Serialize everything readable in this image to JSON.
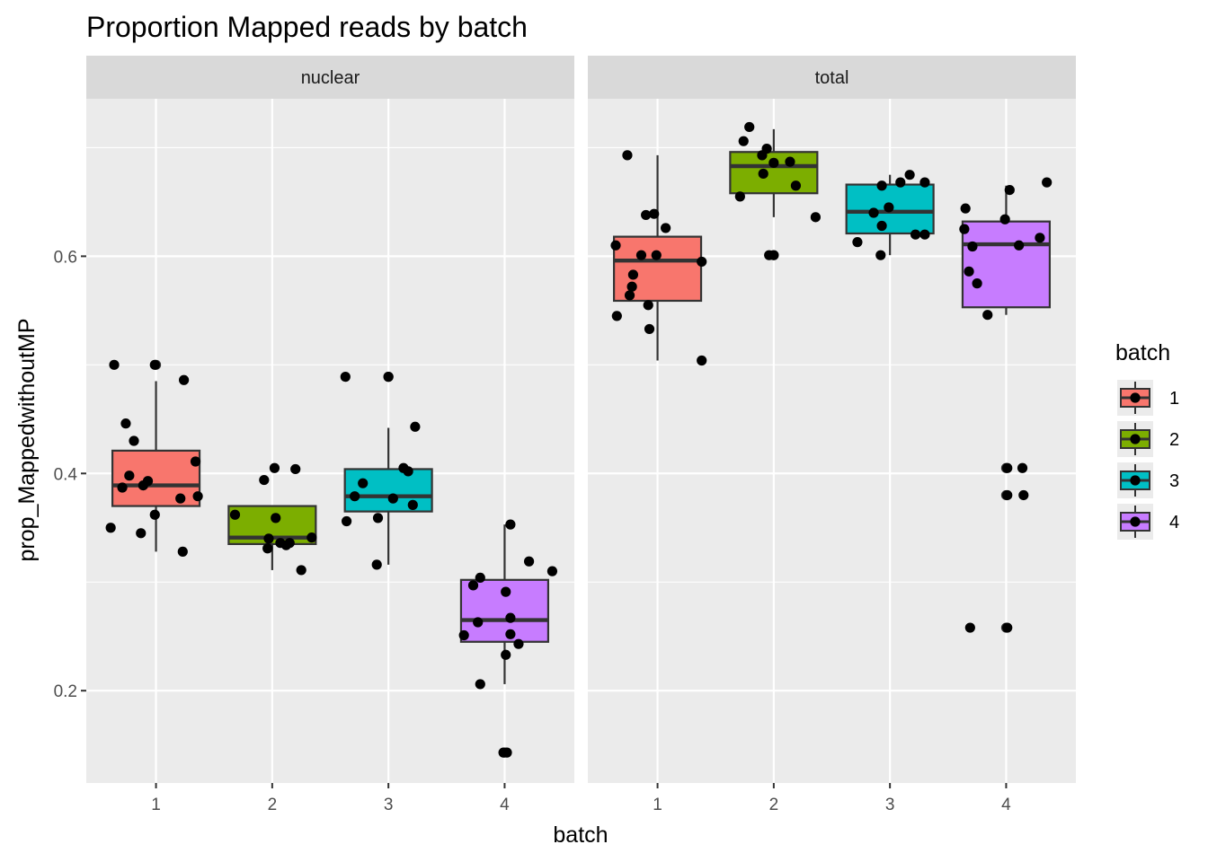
{
  "chart_data": {
    "type": "box",
    "title": "Proportion Mapped reads by batch",
    "xlabel": "batch",
    "ylabel": "prop_MappedwithoutMP",
    "categories": [
      "1",
      "2",
      "3",
      "4"
    ],
    "ylim": [
      0.115,
      0.745
    ],
    "y_ticks": [
      0.2,
      0.4,
      0.6
    ],
    "y_tick_labels": [
      "0.2",
      "0.4",
      "0.6"
    ],
    "grid": true,
    "legend": {
      "title": "batch",
      "position": "right",
      "entries": [
        "1",
        "2",
        "3",
        "4"
      ]
    },
    "colors": {
      "1": "#F8766D",
      "2": "#7CAE00",
      "3": "#00BFC4",
      "4": "#C77CFF",
      "panel_bg": "#EBEBEB",
      "strip_bg": "#D9D9D9",
      "grid": "#FFFFFF",
      "point": "#000000"
    },
    "panels": [
      {
        "name": "nuclear",
        "boxes": [
          {
            "batch": "1",
            "min": 0.328,
            "q1": 0.37,
            "median": 0.389,
            "q3": 0.421,
            "max": 0.485,
            "outliers": [
              0.5
            ]
          },
          {
            "batch": "2",
            "min": 0.311,
            "q1": 0.335,
            "median": 0.341,
            "q3": 0.37,
            "max": 0.37,
            "outliers": []
          },
          {
            "batch": "3",
            "min": 0.316,
            "q1": 0.365,
            "median": 0.379,
            "q3": 0.404,
            "max": 0.442,
            "outliers": [
              0.489
            ]
          },
          {
            "batch": "4",
            "min": 0.206,
            "q1": 0.245,
            "median": 0.265,
            "q3": 0.302,
            "max": 0.353,
            "outliers": [
              0.143
            ]
          }
        ],
        "points": [
          {
            "batch": "1",
            "x": 0.61,
            "y": 0.35
          },
          {
            "batch": "1",
            "x": 0.64,
            "y": 0.5
          },
          {
            "batch": "1",
            "x": 0.71,
            "y": 0.387
          },
          {
            "batch": "1",
            "x": 0.74,
            "y": 0.446
          },
          {
            "batch": "1",
            "x": 0.77,
            "y": 0.398
          },
          {
            "batch": "1",
            "x": 0.81,
            "y": 0.43
          },
          {
            "batch": "1",
            "x": 0.87,
            "y": 0.345
          },
          {
            "batch": "1",
            "x": 0.89,
            "y": 0.389
          },
          {
            "batch": "1",
            "x": 0.93,
            "y": 0.393
          },
          {
            "batch": "1",
            "x": 0.99,
            "y": 0.362
          },
          {
            "batch": "1",
            "x": 0.99,
            "y": 0.5
          },
          {
            "batch": "1",
            "x": 1.21,
            "y": 0.377
          },
          {
            "batch": "1",
            "x": 1.23,
            "y": 0.328
          },
          {
            "batch": "1",
            "x": 1.24,
            "y": 0.486
          },
          {
            "batch": "1",
            "x": 1.34,
            "y": 0.411
          },
          {
            "batch": "1",
            "x": 1.36,
            "y": 0.379
          },
          {
            "batch": "2",
            "x": 1.68,
            "y": 0.362
          },
          {
            "batch": "2",
            "x": 1.93,
            "y": 0.394
          },
          {
            "batch": "2",
            "x": 1.96,
            "y": 0.331
          },
          {
            "batch": "2",
            "x": 1.97,
            "y": 0.34
          },
          {
            "batch": "2",
            "x": 2.02,
            "y": 0.405
          },
          {
            "batch": "2",
            "x": 2.03,
            "y": 0.359
          },
          {
            "batch": "2",
            "x": 2.07,
            "y": 0.336
          },
          {
            "batch": "2",
            "x": 2.12,
            "y": 0.334
          },
          {
            "batch": "2",
            "x": 2.15,
            "y": 0.336
          },
          {
            "batch": "2",
            "x": 2.2,
            "y": 0.404
          },
          {
            "batch": "2",
            "x": 2.25,
            "y": 0.311
          },
          {
            "batch": "2",
            "x": 2.34,
            "y": 0.341
          },
          {
            "batch": "3",
            "x": 2.64,
            "y": 0.356
          },
          {
            "batch": "3",
            "x": 2.71,
            "y": 0.379
          },
          {
            "batch": "3",
            "x": 2.78,
            "y": 0.391
          },
          {
            "batch": "3",
            "x": 2.63,
            "y": 0.489
          },
          {
            "batch": "3",
            "x": 2.9,
            "y": 0.316
          },
          {
            "batch": "3",
            "x": 2.91,
            "y": 0.359
          },
          {
            "batch": "3",
            "x": 3.0,
            "y": 0.489
          },
          {
            "batch": "3",
            "x": 3.04,
            "y": 0.377
          },
          {
            "batch": "3",
            "x": 3.13,
            "y": 0.405
          },
          {
            "batch": "3",
            "x": 3.17,
            "y": 0.402
          },
          {
            "batch": "3",
            "x": 3.21,
            "y": 0.371
          },
          {
            "batch": "3",
            "x": 3.23,
            "y": 0.443
          },
          {
            "batch": "4",
            "x": 3.65,
            "y": 0.251
          },
          {
            "batch": "4",
            "x": 3.73,
            "y": 0.297
          },
          {
            "batch": "4",
            "x": 3.77,
            "y": 0.263
          },
          {
            "batch": "4",
            "x": 3.79,
            "y": 0.304
          },
          {
            "batch": "4",
            "x": 3.79,
            "y": 0.206
          },
          {
            "batch": "4",
            "x": 3.99,
            "y": 0.143
          },
          {
            "batch": "4",
            "x": 4.01,
            "y": 0.233
          },
          {
            "batch": "4",
            "x": 4.02,
            "y": 0.143
          },
          {
            "batch": "4",
            "x": 4.01,
            "y": 0.291
          },
          {
            "batch": "4",
            "x": 4.05,
            "y": 0.267
          },
          {
            "batch": "4",
            "x": 4.05,
            "y": 0.252
          },
          {
            "batch": "4",
            "x": 4.05,
            "y": 0.353
          },
          {
            "batch": "4",
            "x": 4.12,
            "y": 0.243
          },
          {
            "batch": "4",
            "x": 4.21,
            "y": 0.319
          },
          {
            "batch": "4",
            "x": 4.41,
            "y": 0.31
          }
        ]
      },
      {
        "name": "total",
        "boxes": [
          {
            "batch": "1",
            "min": 0.504,
            "q1": 0.559,
            "median": 0.596,
            "q3": 0.618,
            "max": 0.693,
            "outliers": []
          },
          {
            "batch": "2",
            "min": 0.636,
            "q1": 0.658,
            "median": 0.683,
            "q3": 0.696,
            "max": 0.717,
            "outliers": [
              0.601
            ]
          },
          {
            "batch": "3",
            "min": 0.601,
            "q1": 0.621,
            "median": 0.641,
            "q3": 0.666,
            "max": 0.675,
            "outliers": []
          },
          {
            "batch": "4",
            "min": 0.546,
            "q1": 0.553,
            "median": 0.611,
            "q3": 0.632,
            "max": 0.665,
            "outliers": [
              0.258,
              0.38,
              0.405
            ]
          }
        ],
        "points": [
          {
            "batch": "1",
            "x": 0.65,
            "y": 0.545
          },
          {
            "batch": "1",
            "x": 0.64,
            "y": 0.61
          },
          {
            "batch": "1",
            "x": 0.74,
            "y": 0.693
          },
          {
            "batch": "1",
            "x": 0.76,
            "y": 0.564
          },
          {
            "batch": "1",
            "x": 0.78,
            "y": 0.572
          },
          {
            "batch": "1",
            "x": 0.79,
            "y": 0.583
          },
          {
            "batch": "1",
            "x": 0.86,
            "y": 0.601
          },
          {
            "batch": "1",
            "x": 0.9,
            "y": 0.638
          },
          {
            "batch": "1",
            "x": 0.92,
            "y": 0.555
          },
          {
            "batch": "1",
            "x": 0.93,
            "y": 0.533
          },
          {
            "batch": "1",
            "x": 0.97,
            "y": 0.639
          },
          {
            "batch": "1",
            "x": 1.07,
            "y": 0.626
          },
          {
            "batch": "1",
            "x": 0.99,
            "y": 0.601
          },
          {
            "batch": "1",
            "x": 1.38,
            "y": 0.504
          },
          {
            "batch": "1",
            "x": 1.38,
            "y": 0.595
          },
          {
            "batch": "2",
            "x": 1.71,
            "y": 0.655
          },
          {
            "batch": "2",
            "x": 1.74,
            "y": 0.706
          },
          {
            "batch": "2",
            "x": 1.79,
            "y": 0.719
          },
          {
            "batch": "2",
            "x": 1.9,
            "y": 0.693
          },
          {
            "batch": "2",
            "x": 1.91,
            "y": 0.676
          },
          {
            "batch": "2",
            "x": 1.94,
            "y": 0.699
          },
          {
            "batch": "2",
            "x": 1.96,
            "y": 0.601
          },
          {
            "batch": "2",
            "x": 2.0,
            "y": 0.601
          },
          {
            "batch": "2",
            "x": 2.0,
            "y": 0.686
          },
          {
            "batch": "2",
            "x": 2.14,
            "y": 0.687
          },
          {
            "batch": "2",
            "x": 2.19,
            "y": 0.665
          },
          {
            "batch": "2",
            "x": 2.36,
            "y": 0.636
          },
          {
            "batch": "3",
            "x": 2.72,
            "y": 0.613
          },
          {
            "batch": "3",
            "x": 2.86,
            "y": 0.64
          },
          {
            "batch": "3",
            "x": 2.92,
            "y": 0.601
          },
          {
            "batch": "3",
            "x": 2.93,
            "y": 0.628
          },
          {
            "batch": "3",
            "x": 2.93,
            "y": 0.665
          },
          {
            "batch": "3",
            "x": 2.99,
            "y": 0.645
          },
          {
            "batch": "3",
            "x": 3.09,
            "y": 0.668
          },
          {
            "batch": "3",
            "x": 3.17,
            "y": 0.675
          },
          {
            "batch": "3",
            "x": 3.22,
            "y": 0.62
          },
          {
            "batch": "3",
            "x": 3.3,
            "y": 0.62
          },
          {
            "batch": "3",
            "x": 3.3,
            "y": 0.668
          },
          {
            "batch": "4",
            "x": 3.64,
            "y": 0.625
          },
          {
            "batch": "4",
            "x": 3.65,
            "y": 0.644
          },
          {
            "batch": "4",
            "x": 3.68,
            "y": 0.586
          },
          {
            "batch": "4",
            "x": 3.71,
            "y": 0.609
          },
          {
            "batch": "4",
            "x": 3.75,
            "y": 0.575
          },
          {
            "batch": "4",
            "x": 3.69,
            "y": 0.258
          },
          {
            "batch": "4",
            "x": 3.84,
            "y": 0.546
          },
          {
            "batch": "4",
            "x": 3.99,
            "y": 0.634
          },
          {
            "batch": "4",
            "x": 4.03,
            "y": 0.661
          },
          {
            "batch": "4",
            "x": 4.01,
            "y": 0.258
          },
          {
            "batch": "4",
            "x": 4.01,
            "y": 0.38
          },
          {
            "batch": "4",
            "x": 4.01,
            "y": 0.405
          },
          {
            "batch": "4",
            "x": 4.11,
            "y": 0.61
          },
          {
            "batch": "4",
            "x": 4.15,
            "y": 0.38
          },
          {
            "batch": "4",
            "x": 4.14,
            "y": 0.405
          },
          {
            "batch": "4",
            "x": 4.29,
            "y": 0.617
          },
          {
            "batch": "4",
            "x": 4.35,
            "y": 0.668
          }
        ]
      }
    ]
  }
}
